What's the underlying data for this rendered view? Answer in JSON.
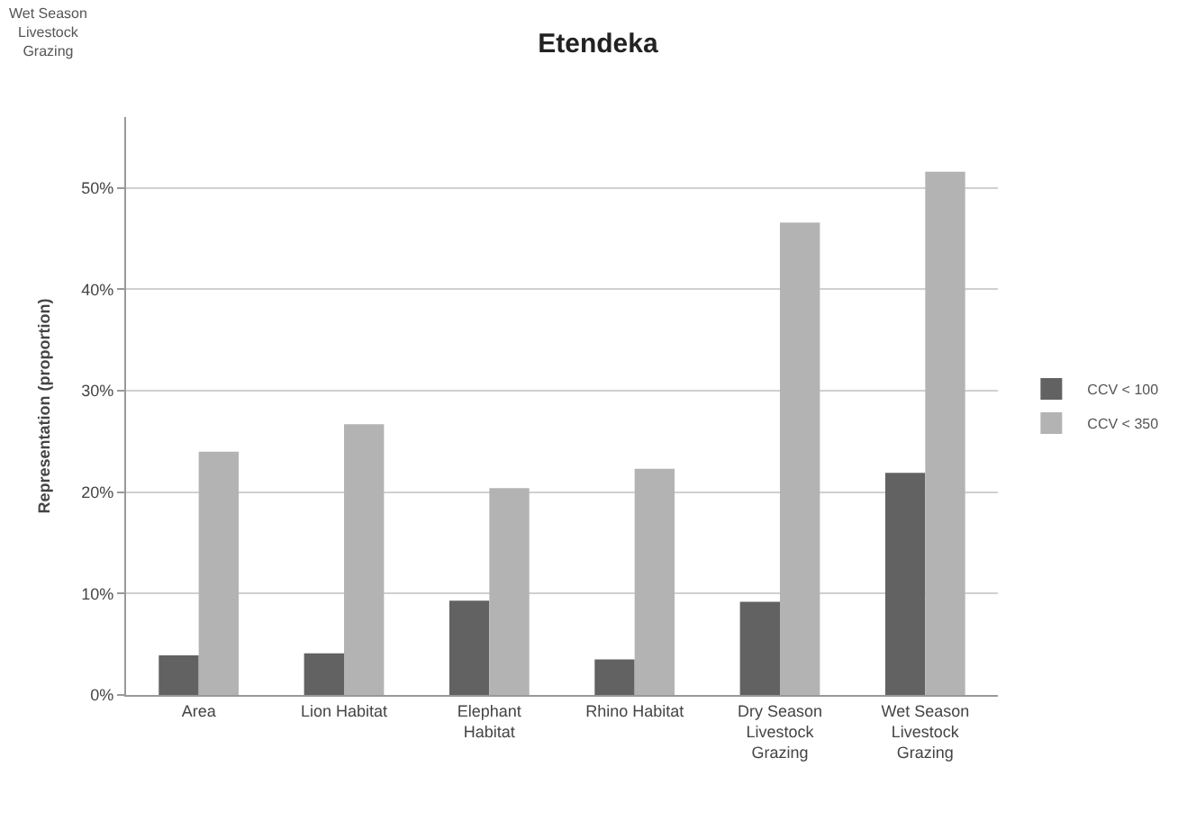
{
  "chart_data": {
    "type": "bar",
    "title": "Etendeka",
    "ylabel": "Representation (proportion)",
    "annotations": [
      "Wet Season Livestock Grazing"
    ],
    "categories": [
      "Area",
      "Lion Habitat",
      "Elephant Habitat",
      "Rhino Habitat",
      "Dry Season Livestock Grazing",
      "Wet Season Livestock Grazing"
    ],
    "series": [
      {
        "name": "CCV < 100",
        "color": "#626262",
        "values": [
          3.9,
          4.1,
          9.3,
          3.5,
          9.2,
          21.9
        ]
      },
      {
        "name": "CCV < 350",
        "color": "#b3b3b3",
        "values": [
          24.0,
          26.7,
          20.4,
          22.3,
          46.6,
          51.6
        ]
      }
    ],
    "ylim": [
      0,
      57
    ],
    "yticks": [
      {
        "value": 0,
        "label": "0%"
      },
      {
        "value": 10,
        "label": "10%"
      },
      {
        "value": 20,
        "label": "20%"
      },
      {
        "value": 30,
        "label": "30%"
      },
      {
        "value": 40,
        "label": "40%"
      },
      {
        "value": 50,
        "label": "50%"
      }
    ],
    "grid": "y",
    "legend": "right"
  }
}
